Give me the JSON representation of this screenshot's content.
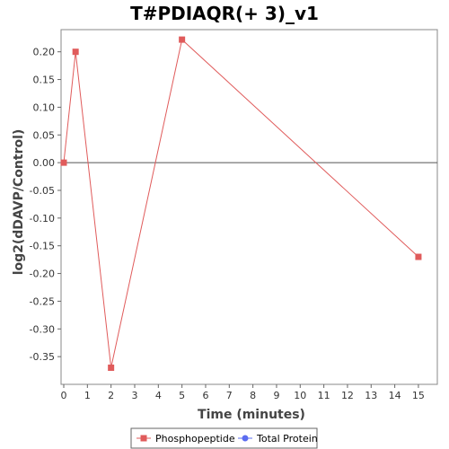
{
  "chart_data": {
    "type": "line",
    "title": "T#PDIAQR(+ 3)_v1",
    "xlabel": "Time (minutes)",
    "ylabel": "log2(dDAVP/Control)",
    "xlim": [
      0,
      15.8
    ],
    "ylim": [
      -0.4,
      0.24
    ],
    "x_ticks": [
      0,
      1,
      2,
      3,
      4,
      5,
      6,
      7,
      8,
      9,
      10,
      11,
      12,
      13,
      14,
      15
    ],
    "y_ticks": [
      0.2,
      0.15,
      0.1,
      0.05,
      0.0,
      -0.05,
      -0.1,
      -0.15,
      -0.2,
      -0.25,
      -0.3,
      -0.35
    ],
    "y_tick_labels": [
      "0.20",
      "0.15",
      "0.10",
      "0.05",
      "0.00",
      "-0.05",
      "-0.10",
      "-0.15",
      "-0.20",
      "-0.25",
      "-0.30",
      "-0.35"
    ],
    "zero_line": true,
    "grid": false,
    "legend_position": "bottom",
    "series": [
      {
        "name": "Phosphopeptide",
        "color": "#e05b5b",
        "marker": "square",
        "points": [
          {
            "x": 0,
            "y": 0.0
          },
          {
            "x": 0.5,
            "y": 0.2
          },
          {
            "x": 2,
            "y": -0.37
          },
          {
            "x": 5,
            "y": 0.222
          },
          {
            "x": 15,
            "y": -0.17
          }
        ]
      },
      {
        "name": "Total Protein",
        "color": "#5b6cf0",
        "marker": "circle",
        "points": []
      }
    ]
  }
}
